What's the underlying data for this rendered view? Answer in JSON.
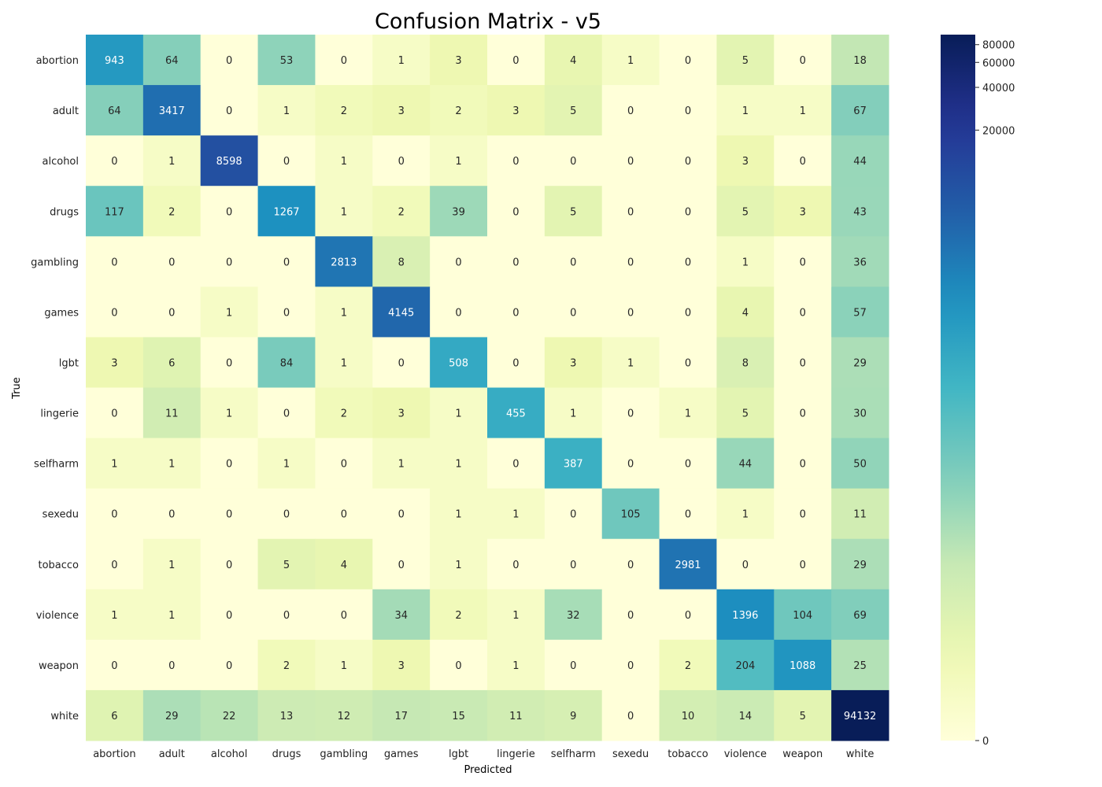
{
  "chart_data": {
    "type": "heatmap",
    "title": "Confusion Matrix - v5",
    "xlabel": "Predicted",
    "ylabel": "True",
    "x_categories": [
      "abortion",
      "adult",
      "alcohol",
      "drugs",
      "gambling",
      "games",
      "lgbt",
      "lingerie",
      "selfharm",
      "sexedu",
      "tobacco",
      "violence",
      "weapon",
      "white"
    ],
    "y_categories": [
      "abortion",
      "adult",
      "alcohol",
      "drugs",
      "gambling",
      "games",
      "lgbt",
      "lingerie",
      "selfharm",
      "sexedu",
      "tobacco",
      "violence",
      "weapon",
      "white"
    ],
    "matrix": [
      [
        943,
        64,
        0,
        53,
        0,
        1,
        3,
        0,
        4,
        1,
        0,
        5,
        0,
        18
      ],
      [
        64,
        3417,
        0,
        1,
        2,
        3,
        2,
        3,
        5,
        0,
        0,
        1,
        1,
        67
      ],
      [
        0,
        1,
        8598,
        0,
        1,
        0,
        1,
        0,
        0,
        0,
        0,
        3,
        0,
        44
      ],
      [
        117,
        2,
        0,
        1267,
        1,
        2,
        39,
        0,
        5,
        0,
        0,
        5,
        3,
        43
      ],
      [
        0,
        0,
        0,
        0,
        2813,
        8,
        0,
        0,
        0,
        0,
        0,
        1,
        0,
        36
      ],
      [
        0,
        0,
        1,
        0,
        1,
        4145,
        0,
        0,
        0,
        0,
        0,
        4,
        0,
        57
      ],
      [
        3,
        6,
        0,
        84,
        1,
        0,
        508,
        0,
        3,
        1,
        0,
        8,
        0,
        29
      ],
      [
        0,
        11,
        1,
        0,
        2,
        3,
        1,
        455,
        1,
        0,
        1,
        5,
        0,
        30
      ],
      [
        1,
        1,
        0,
        1,
        0,
        1,
        1,
        0,
        387,
        0,
        0,
        44,
        0,
        50
      ],
      [
        0,
        0,
        0,
        0,
        0,
        0,
        1,
        1,
        0,
        105,
        0,
        1,
        0,
        11
      ],
      [
        0,
        1,
        0,
        5,
        4,
        0,
        1,
        0,
        0,
        0,
        2981,
        0,
        0,
        29
      ],
      [
        1,
        1,
        0,
        0,
        0,
        34,
        2,
        1,
        32,
        0,
        0,
        1396,
        104,
        69
      ],
      [
        0,
        0,
        0,
        2,
        1,
        3,
        0,
        1,
        0,
        0,
        2,
        204,
        1088,
        25
      ],
      [
        6,
        29,
        22,
        13,
        12,
        17,
        15,
        11,
        9,
        0,
        10,
        14,
        5,
        94132
      ]
    ],
    "colormap": "YlGnBu",
    "color_scale": "log",
    "colorbar_ticks": [
      0,
      20000,
      40000,
      60000,
      80000
    ],
    "colorbar_max": 94132,
    "grid": false,
    "annotations": "cell values"
  }
}
